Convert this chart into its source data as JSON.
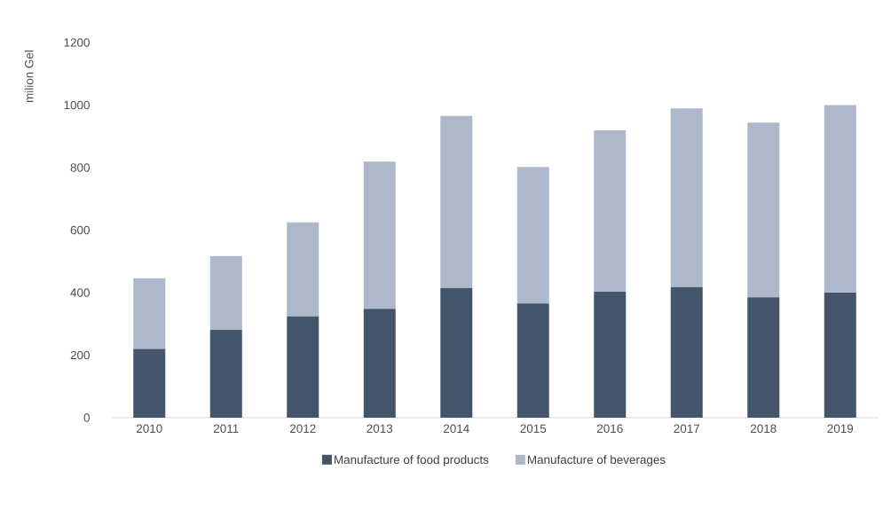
{
  "chart_data": {
    "type": "bar",
    "stacked": true,
    "ylabel": "milion Gel",
    "categories": [
      "2010",
      "2011",
      "2012",
      "2013",
      "2014",
      "2015",
      "2016",
      "2017",
      "2018",
      "2019"
    ],
    "series": [
      {
        "name": "Manufacture of food products",
        "color": "#44546a",
        "values": [
          220,
          281,
          324,
          348,
          415,
          365,
          403,
          418,
          385,
          400
        ]
      },
      {
        "name": "Manufacture of beverages",
        "color": "#adb9ca",
        "values": [
          226,
          236,
          301,
          471,
          550,
          437,
          516,
          571,
          559,
          600
        ]
      }
    ],
    "ylim": [
      0,
      1200
    ],
    "yticks": [
      0,
      200,
      400,
      600,
      800,
      1000,
      1200
    ],
    "legend": "bottom"
  }
}
